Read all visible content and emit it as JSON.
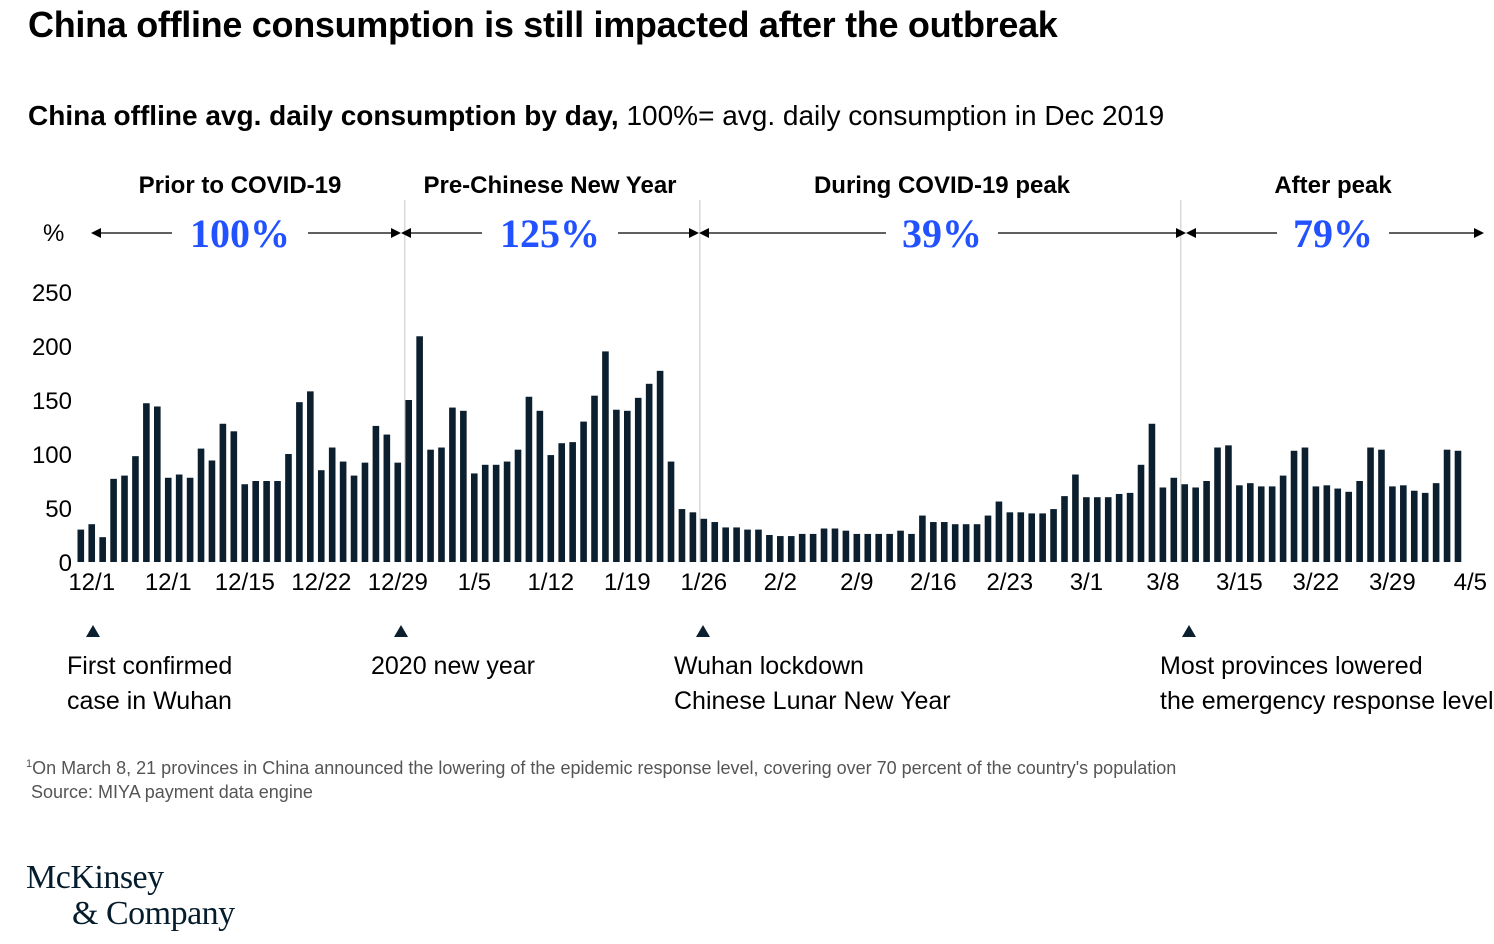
{
  "title": "China offline consumption is still impacted after the outbreak",
  "subtitle": {
    "bold": "China offline avg. daily consumption by day,",
    "regular": "100%= avg. daily consumption in Dec 2019"
  },
  "chart_data": {
    "type": "bar",
    "title": "China offline avg. daily consumption by day",
    "ylabel": "%",
    "ylim": [
      0,
      250
    ],
    "yticks": [
      0,
      50,
      100,
      150,
      200,
      250
    ],
    "tick_labels": [
      "12/1",
      "12/1",
      "12/15",
      "12/22",
      "12/29",
      "1/5",
      "1/12",
      "1/19",
      "1/26",
      "2/2",
      "2/9",
      "2/16",
      "2/23",
      "3/1",
      "3/8",
      "3/15",
      "3/22",
      "3/29",
      "4/5"
    ],
    "values": [
      30,
      35,
      23,
      77,
      80,
      98,
      147,
      144,
      78,
      81,
      78,
      105,
      94,
      128,
      121,
      72,
      75,
      75,
      75,
      100,
      148,
      158,
      85,
      106,
      93,
      80,
      92,
      126,
      118,
      92,
      150,
      209,
      104,
      106,
      143,
      140,
      82,
      90,
      90,
      93,
      104,
      153,
      140,
      99,
      110,
      111,
      130,
      154,
      195,
      141,
      140,
      152,
      165,
      177,
      93,
      49,
      46,
      40,
      37,
      32,
      32,
      30,
      30,
      25,
      24,
      24,
      26,
      26,
      31,
      31,
      29,
      26,
      26,
      26,
      26,
      29,
      26,
      43,
      37,
      37,
      35,
      35,
      35,
      43,
      56,
      46,
      46,
      45,
      45,
      49,
      61,
      81,
      60,
      60,
      60,
      63,
      64,
      90,
      128,
      69,
      78,
      72,
      69,
      75,
      106,
      108,
      71,
      73,
      70,
      70,
      80,
      103,
      106,
      70,
      71,
      68,
      65,
      75,
      106,
      104,
      70,
      71,
      66,
      64,
      73,
      104,
      103
    ],
    "phases": [
      {
        "label": "Prior to COVID-19",
        "value": "100%"
      },
      {
        "label": "Pre-Chinese New Year",
        "value": "125%"
      },
      {
        "label": "During COVID-19 peak",
        "value": "39%"
      },
      {
        "label": "After peak",
        "value": "79%"
      }
    ],
    "annotations": [
      {
        "lines": [
          "First confirmed",
          "case in Wuhan"
        ]
      },
      {
        "lines": [
          "2020 new year"
        ]
      },
      {
        "lines": [
          "Wuhan lockdown",
          "Chinese Lunar New Year"
        ]
      },
      {
        "lines": [
          "Most provinces lowered",
          "the emergency response level"
        ],
        "sup": "1"
      }
    ]
  },
  "footnotes": {
    "note_sup": "1",
    "note": "On March 8, 21 provinces in China announced the lowering of the epidemic response level, covering over 70 percent of the country's population",
    "source": "Source: MIYA payment data engine"
  },
  "logo": {
    "line1": "McKinsey",
    "line2": "& Company"
  },
  "colors": {
    "bar": "#0B1F2E",
    "accent": "#2251FF",
    "divider": "#D9D9D9",
    "footnote": "#555555"
  }
}
